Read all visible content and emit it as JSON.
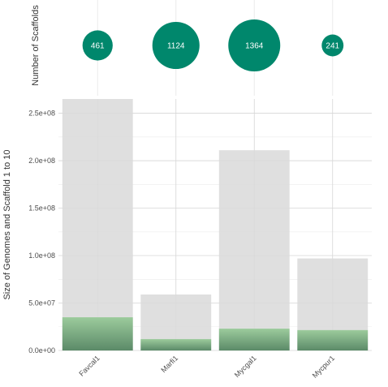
{
  "chart_data": [
    {
      "type": "scatter",
      "ylabel": "Number of Scaffolds",
      "categories": [
        "Favcal1",
        "Marfi1",
        "Mycgal1",
        "Mycpur1"
      ],
      "values": [
        461,
        1124,
        1364,
        241
      ],
      "labels": [
        "461",
        "1124",
        "1364",
        "241"
      ],
      "color": "#00876c",
      "grid": true
    },
    {
      "type": "bar",
      "ylabel": "Size of Genomes and Scaffold 1 to 10",
      "categories": [
        "Favcal1",
        "Marfi1",
        "Mycgal1",
        "Mycpur1"
      ],
      "series": [
        {
          "values": [
            265000000.0,
            59000000.0,
            211000000.0,
            97000000.0
          ],
          "color": "#d9d9d9"
        },
        {
          "values": [
            35000000.0,
            12000000.0,
            23000000.0,
            21500000.0
          ],
          "color_top": "#9ccb9c",
          "color_bottom": "#5b8a68"
        }
      ],
      "ylim": [
        0,
        265000000.0
      ],
      "yticks": [
        0,
        50000000.0,
        100000000.0,
        150000000.0,
        200000000.0,
        250000000.0
      ],
      "ytick_labels": [
        "0.0e+00",
        "5.0e+07",
        "1.0e+08",
        "1.5e+08",
        "2.0e+08",
        "2.5e+08"
      ],
      "grid": true
    }
  ]
}
